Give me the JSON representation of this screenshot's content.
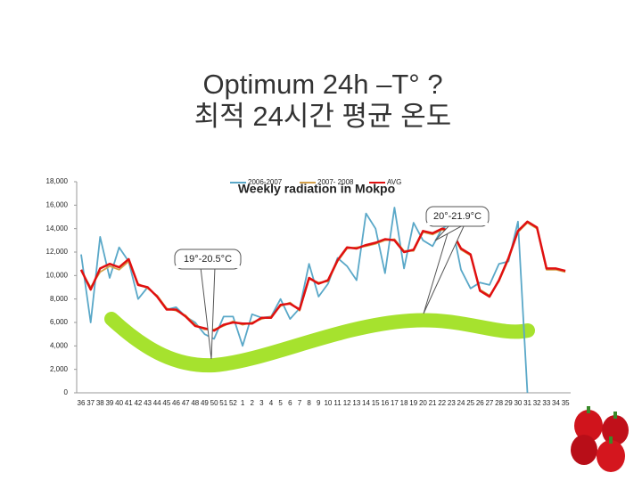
{
  "slide_title": {
    "line1": "Optimum 24h –T° ?",
    "line2": "최적 24시간 평균 온도"
  },
  "chart_data": {
    "type": "line",
    "title": "Weekly radiation in Mokpo",
    "categories": [
      "36",
      "37",
      "38",
      "39",
      "40",
      "41",
      "42",
      "43",
      "44",
      "45",
      "46",
      "47",
      "48",
      "49",
      "50",
      "51",
      "52",
      "1",
      "2",
      "3",
      "4",
      "5",
      "6",
      "7",
      "8",
      "9",
      "10",
      "11",
      "12",
      "13",
      "14",
      "15",
      "16",
      "17",
      "18",
      "19",
      "20",
      "21",
      "22",
      "23",
      "24",
      "25",
      "26",
      "27",
      "28",
      "29",
      "30",
      "31",
      "32",
      "33",
      "34",
      "35"
    ],
    "series": [
      {
        "name": "2006-2007",
        "color": "#5aa8c8",
        "values": [
          11800,
          6000,
          13300,
          9800,
          12400,
          11200,
          8000,
          9000,
          8200,
          7100,
          7300,
          6500,
          6000,
          5000,
          4600,
          6500,
          6500,
          4000,
          6700,
          6400,
          6500,
          8000,
          6300,
          7200,
          11000,
          8200,
          9300,
          11500,
          10800,
          9600,
          15300,
          14000,
          10200,
          15800,
          10600,
          14500,
          13000,
          12500,
          14000,
          14500,
          10500,
          8900,
          9400,
          9200,
          11000,
          11200,
          14600,
          0,
          null,
          null,
          null,
          null
        ]
      },
      {
        "name": "2007- 2008",
        "color": "#d4a04a",
        "values": [
          10400,
          9000,
          10300,
          10800,
          10500,
          11200,
          9300,
          8900,
          8300,
          7200,
          7000,
          6600,
          5800,
          5400,
          5400,
          5700,
          6100,
          5800,
          6000,
          6300,
          6500,
          7400,
          7700,
          7000,
          9700,
          9400,
          9500,
          11200,
          12300,
          12400,
          12500,
          12700,
          13000,
          13100,
          12100,
          12100,
          13700,
          13500,
          13900,
          13700,
          12200,
          11700,
          8800,
          8300,
          9500,
          11400,
          13700,
          14500,
          14000,
          10500,
          10500,
          10300
        ]
      },
      {
        "name": "AVG",
        "color": "#e01010",
        "values": [
          10500,
          8800,
          10600,
          11000,
          10700,
          11400,
          9200,
          9000,
          8200,
          7100,
          7100,
          6500,
          5700,
          5500,
          5300,
          5800,
          6000,
          5900,
          5900,
          6400,
          6400,
          7500,
          7600,
          7100,
          9800,
          9300,
          9600,
          11300,
          12400,
          12300,
          12600,
          12800,
          13100,
          13000,
          12000,
          12200,
          13800,
          13600,
          14000,
          13800,
          12300,
          11800,
          8700,
          8200,
          9600,
          11500,
          13800,
          14600,
          14100,
          10600,
          10600,
          10400
        ]
      }
    ],
    "ylim": [
      0,
      18000
    ],
    "yticks": [
      0,
      {
        "value": 2000,
        "label": "2,000"
      },
      {
        "value": 4000,
        "label": "4,000"
      },
      {
        "value": 6000,
        "label": "6,000"
      },
      {
        "value": 8000,
        "label": "8,000"
      },
      {
        "value": 10000,
        "label": "10,000"
      },
      {
        "value": 12000,
        "label": "12,000"
      },
      {
        "value": 14000,
        "label": "14,000"
      },
      {
        "value": 16000,
        "label": "16,000"
      },
      {
        "value": 18000,
        "label": "18,000"
      }
    ],
    "legend": "top",
    "annotations": [
      "20°-21.9°C",
      "19°-20.5°C"
    ]
  }
}
